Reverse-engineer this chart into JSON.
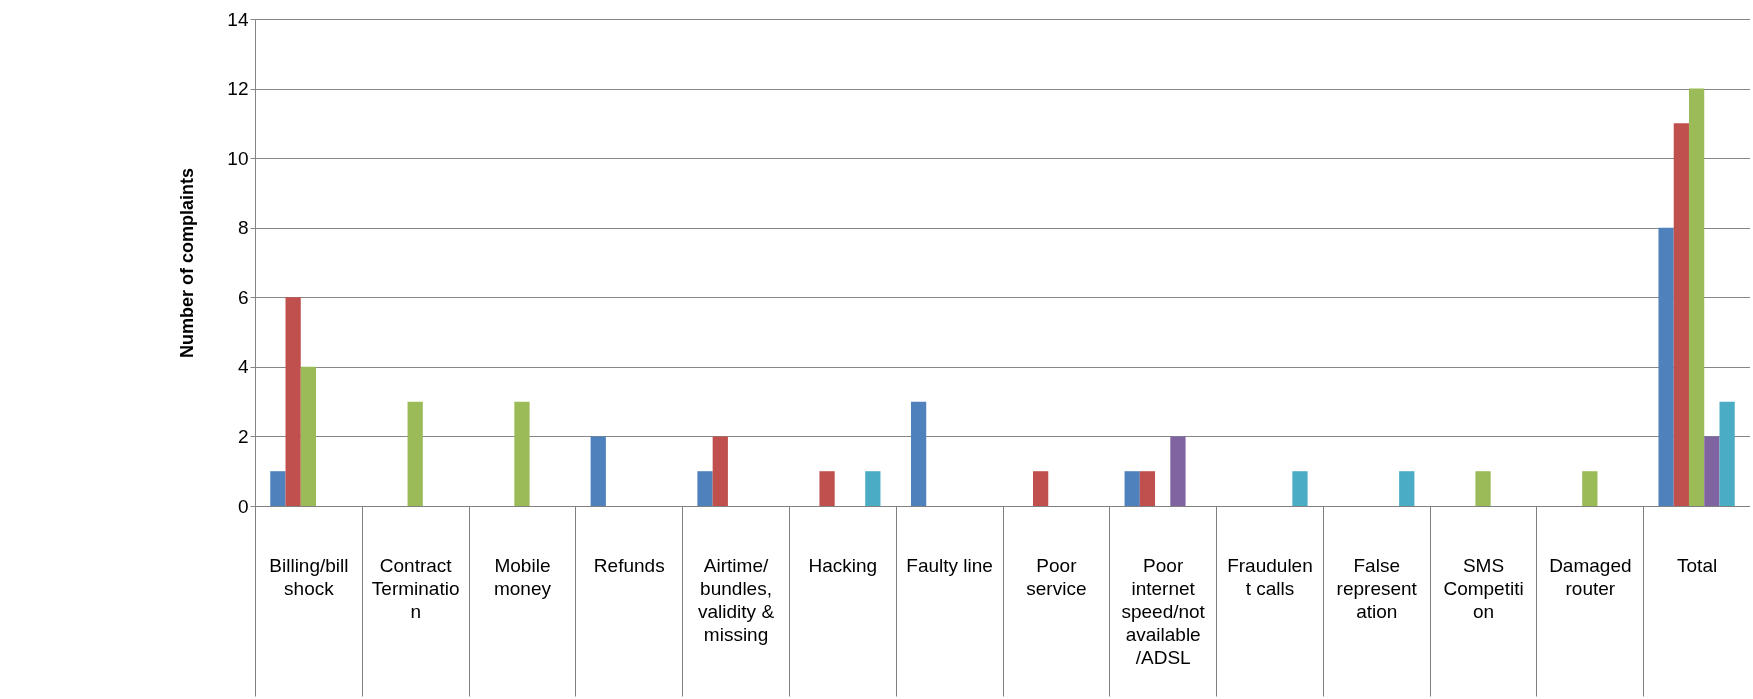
{
  "chart_data": {
    "type": "bar",
    "ylabel": "Number of complaints",
    "categories": [
      "Billing/bill shock",
      "Contract Termination",
      "Mobile money",
      "Refunds",
      "Airtime/ bundles, validity & missing",
      "Hacking",
      "Faulty line",
      "Poor service",
      "Poor internet speed/not available /ADSL",
      "Fraudulent calls",
      "False representation",
      "SMS Competition",
      "Damaged router",
      "Total"
    ],
    "series": [
      {
        "color": "#4f81bd",
        "values": [
          1,
          0,
          0,
          2,
          1,
          0,
          3,
          0,
          1,
          0,
          0,
          0,
          0,
          8
        ]
      },
      {
        "color": "#c0504d",
        "values": [
          6,
          0,
          0,
          0,
          2,
          1,
          0,
          1,
          1,
          0,
          0,
          0,
          0,
          11
        ]
      },
      {
        "color": "#9bbb59",
        "values": [
          4,
          3,
          3,
          0,
          0,
          0,
          0,
          0,
          0,
          0,
          0,
          1,
          1,
          12
        ]
      },
      {
        "color": "#8064a2",
        "values": [
          0,
          0,
          0,
          0,
          0,
          0,
          0,
          0,
          2,
          0,
          0,
          0,
          0,
          2
        ]
      },
      {
        "color": "#4bacc6",
        "values": [
          0,
          0,
          0,
          0,
          0,
          1,
          0,
          0,
          0,
          1,
          1,
          0,
          0,
          3
        ]
      }
    ],
    "ylim": [
      0,
      14
    ],
    "yticks": [
      0,
      2,
      4,
      6,
      8,
      10,
      12,
      14
    ],
    "grid": "y",
    "legend": false
  }
}
